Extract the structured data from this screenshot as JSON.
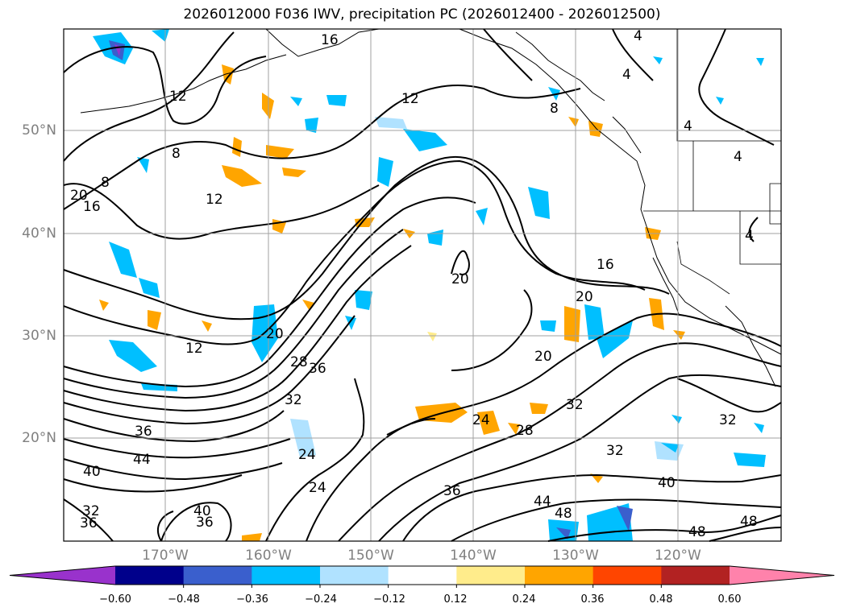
{
  "title": "2026012000 F036 IWV, precipitation PC (2026012400 - 2026012500)",
  "map": {
    "lat_labels": [
      "50°N",
      "40°N",
      "30°N",
      "20°N"
    ],
    "lon_labels": [
      "170°W",
      "160°W",
      "150°W",
      "140°W",
      "130°W",
      "120°W"
    ],
    "contour_labels": [
      {
        "text": "4",
        "id": "c4a"
      },
      {
        "text": "4",
        "id": "c4b"
      },
      {
        "text": "4",
        "id": "c4c"
      },
      {
        "text": "4",
        "id": "c4d"
      },
      {
        "text": "4",
        "id": "c4e"
      },
      {
        "text": "8",
        "id": "c8a"
      },
      {
        "text": "8",
        "id": "c8b"
      },
      {
        "text": "8",
        "id": "c8c"
      },
      {
        "text": "12",
        "id": "c12a"
      },
      {
        "text": "12",
        "id": "c12b"
      },
      {
        "text": "12",
        "id": "c12c"
      },
      {
        "text": "12",
        "id": "c12d"
      },
      {
        "text": "16",
        "id": "c16a"
      },
      {
        "text": "16",
        "id": "c16b"
      },
      {
        "text": "16",
        "id": "c16c"
      },
      {
        "text": "20",
        "id": "c20a"
      },
      {
        "text": "20",
        "id": "c20b"
      },
      {
        "text": "20",
        "id": "c20c"
      },
      {
        "text": "20",
        "id": "c20d"
      },
      {
        "text": "20",
        "id": "c20e"
      },
      {
        "text": "24",
        "id": "c24a"
      },
      {
        "text": "24",
        "id": "c24b"
      },
      {
        "text": "24",
        "id": "c24c"
      },
      {
        "text": "28",
        "id": "c28a"
      },
      {
        "text": "28",
        "id": "c28b"
      },
      {
        "text": "32",
        "id": "c32a"
      },
      {
        "text": "32",
        "id": "c32b"
      },
      {
        "text": "32",
        "id": "c32c"
      },
      {
        "text": "32",
        "id": "c32d"
      },
      {
        "text": "32",
        "id": "c32e"
      },
      {
        "text": "36",
        "id": "c36a"
      },
      {
        "text": "36",
        "id": "c36b"
      },
      {
        "text": "36",
        "id": "c36c"
      },
      {
        "text": "36",
        "id": "c36d"
      },
      {
        "text": "36",
        "id": "c36e"
      },
      {
        "text": "40",
        "id": "c40a"
      },
      {
        "text": "40",
        "id": "c40b"
      },
      {
        "text": "40",
        "id": "c40c"
      },
      {
        "text": "44",
        "id": "c44a"
      },
      {
        "text": "44",
        "id": "c44b"
      },
      {
        "text": "48",
        "id": "c48a"
      },
      {
        "text": "48",
        "id": "c48b"
      },
      {
        "text": "48",
        "id": "c48c"
      }
    ]
  },
  "colorbar": {
    "colors": [
      "#9932cc",
      "#00008b",
      "#3a5fcd",
      "#00bfff",
      "#b0e2ff",
      "#ffffff",
      "#ffec8b",
      "#ffa500",
      "#ff4500",
      "#b22222",
      "#ff82ab"
    ],
    "ticks": [
      "−0.60",
      "−0.48",
      "−0.36",
      "−0.24",
      "−0.12",
      "0.12",
      "0.24",
      "0.36",
      "0.48",
      "0.60"
    ]
  }
}
